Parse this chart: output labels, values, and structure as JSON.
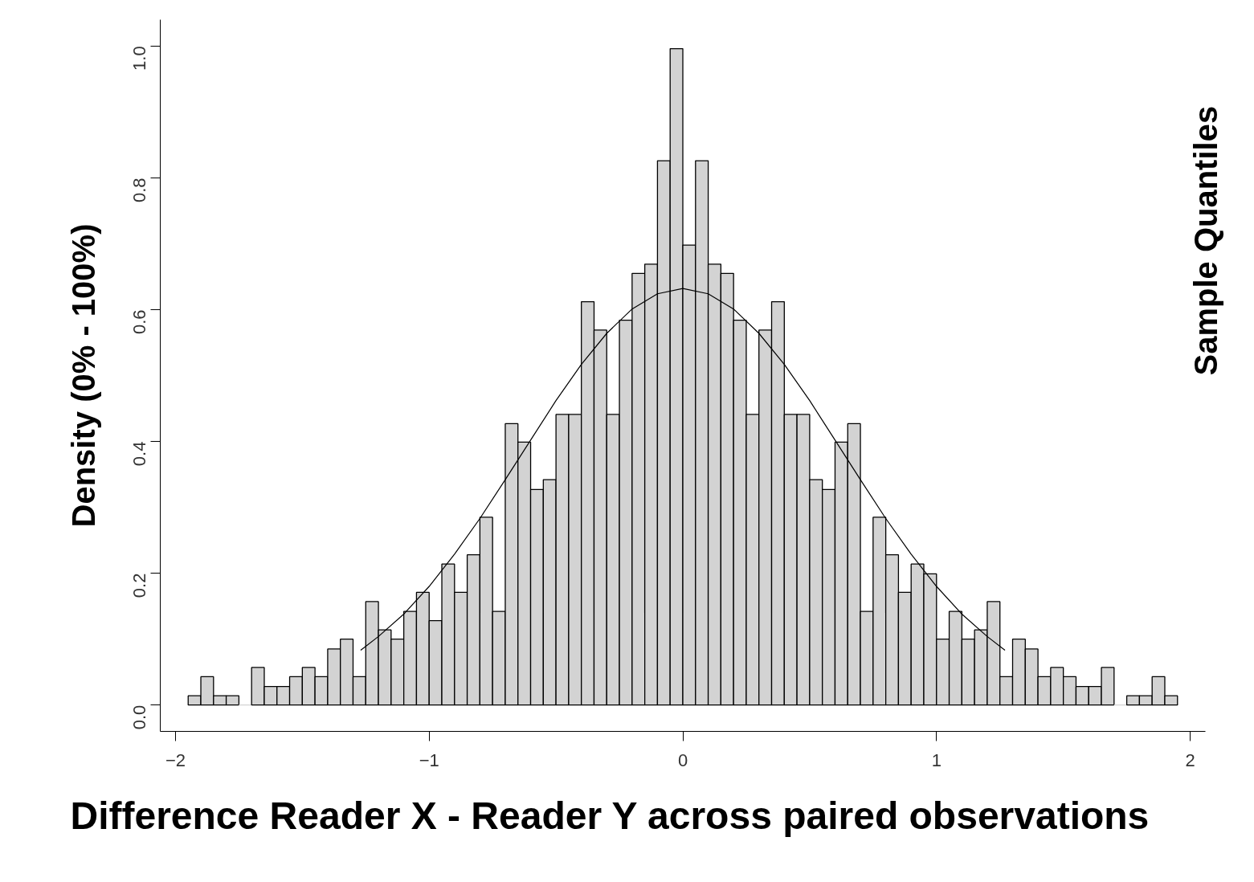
{
  "chart_data": {
    "type": "histogram",
    "xlabel": "Difference Reader X - Reader Y across paired observations",
    "ylabel": "Density (0% - 100%)",
    "annotations": [
      "Sample Quantiles"
    ],
    "bins": [
      -1.95,
      -1.9,
      -1.85,
      -1.8,
      -1.75,
      -1.7,
      -1.65,
      -1.6,
      -1.55,
      -1.5,
      -1.45,
      -1.4,
      -1.35,
      -1.3,
      -1.25,
      -1.2,
      -1.15,
      -1.1,
      -1.05,
      -1.0,
      -0.95,
      -0.9,
      -0.85,
      -0.8,
      -0.75,
      -0.7,
      -0.65,
      -0.6,
      -0.55,
      -0.5,
      -0.45,
      -0.4,
      -0.35,
      -0.3,
      -0.25,
      -0.2,
      -0.15,
      -0.1,
      -0.05,
      0,
      0.05,
      0.1,
      0.15,
      0.2,
      0.25,
      0.3,
      0.35,
      0.4,
      0.45,
      0.5,
      0.55,
      0.6,
      0.65,
      0.7,
      0.75,
      0.8,
      0.85,
      0.9,
      0.95,
      1.0,
      1.05,
      1.1,
      1.15,
      1.2,
      1.25,
      1.3,
      1.35,
      1.4,
      1.45,
      1.5,
      1.55,
      1.6,
      1.65,
      1.7,
      1.75,
      1.8,
      1.85,
      1.9,
      1.95
    ],
    "values": [
      0.014,
      0.043,
      0.014,
      0.014,
      0,
      0.057,
      0.028,
      0.028,
      0.043,
      0.057,
      0.043,
      0.085,
      0.1,
      0.043,
      0.157,
      0.114,
      0.1,
      0.142,
      0.171,
      0.128,
      0.214,
      0.171,
      0.228,
      0.285,
      0.142,
      0.427,
      0.399,
      0.327,
      0.342,
      0.441,
      0.441,
      0.612,
      0.569,
      0.441,
      0.584,
      0.655,
      0.669,
      0.826,
      0.996,
      0.698,
      0.826,
      0.669,
      0.655,
      0.584,
      0.441,
      0.569,
      0.612,
      0.441,
      0.441,
      0.342,
      0.327,
      0.399,
      0.427,
      0.142,
      0.285,
      0.228,
      0.171,
      0.214,
      0.199,
      0.1,
      0.142,
      0.1,
      0.114,
      0.157,
      0.043,
      0.1,
      0.085,
      0.043,
      0.057,
      0.043,
      0.028,
      0.028,
      0.057,
      0,
      0.014,
      0.014,
      0.043,
      0.014
    ],
    "color": "#d3d3d3",
    "series": [
      {
        "type": "line",
        "color": "#000000",
        "x": [
          -1.27,
          -1.2,
          -1.1,
          -1.0,
          -0.9,
          -0.8,
          -0.7,
          -0.6,
          -0.5,
          -0.4,
          -0.3,
          -0.2,
          -0.1,
          0,
          0.1,
          0.2,
          0.3,
          0.4,
          0.5,
          0.6,
          0.7,
          0.8,
          0.9,
          1.0,
          1.1,
          1.2,
          1.27
        ],
        "values": [
          0.083,
          0.104,
          0.138,
          0.18,
          0.229,
          0.283,
          0.342,
          0.402,
          0.462,
          0.517,
          0.564,
          0.601,
          0.624,
          0.632,
          0.624,
          0.601,
          0.564,
          0.517,
          0.462,
          0.402,
          0.342,
          0.283,
          0.229,
          0.18,
          0.138,
          0.104,
          0.083
        ]
      }
    ],
    "xlim": [
      -2.06,
      2.06
    ],
    "ylim": [
      -0.04,
      1.04
    ],
    "xticks": [
      -2,
      -1,
      0,
      1,
      2
    ],
    "yticks": [
      {
        "value": 0,
        "label": "0.0"
      },
      {
        "value": 0.2,
        "label": "0.2"
      },
      {
        "value": 0.4,
        "label": "0.4"
      },
      {
        "value": 0.6,
        "label": "0.6"
      },
      {
        "value": 0.8,
        "label": "0.8"
      },
      {
        "value": 1.0,
        "label": "1.0"
      }
    ],
    "grid": false,
    "line_style": "solid"
  }
}
